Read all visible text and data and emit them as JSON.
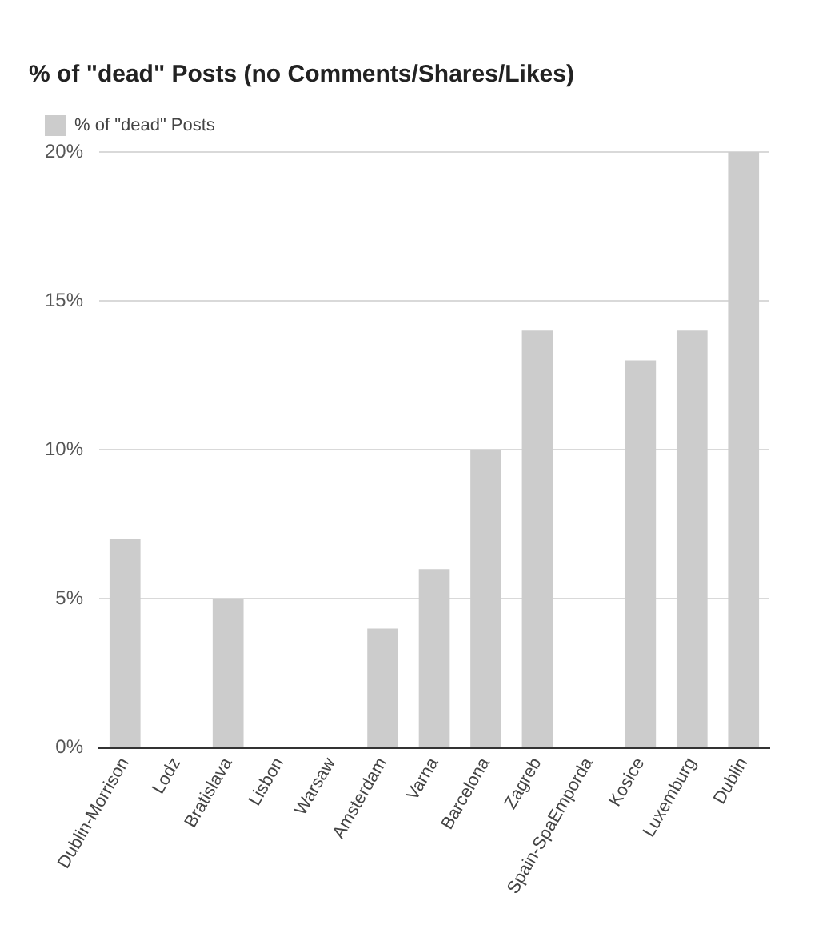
{
  "chart_data": {
    "type": "bar",
    "title": "% of \"dead\" Posts (no Comments/Shares/Likes)",
    "categories": [
      "Dublin-Morrison",
      "Lodz",
      "Bratislava",
      "Lisbon",
      "Warsaw",
      "Amsterdam",
      "Varna",
      "Barcelona",
      "Zagreb",
      "Spain-SpaEmporda",
      "Kosice",
      "Luxemburg",
      "Dublin"
    ],
    "series": [
      {
        "name": "% of \"dead\" Posts",
        "color": "#cccccc",
        "values": [
          7,
          0,
          5,
          0,
          0,
          4,
          6,
          10,
          14,
          0,
          13,
          14,
          20
        ]
      }
    ],
    "ylim": [
      0,
      20
    ],
    "yticks": [
      {
        "value": 0,
        "label": "0%"
      },
      {
        "value": 5,
        "label": "5%"
      },
      {
        "value": 10,
        "label": "10%"
      },
      {
        "value": 15,
        "label": "15%"
      },
      {
        "value": 20,
        "label": "20%"
      }
    ],
    "grid": "y",
    "legend": "top left"
  }
}
